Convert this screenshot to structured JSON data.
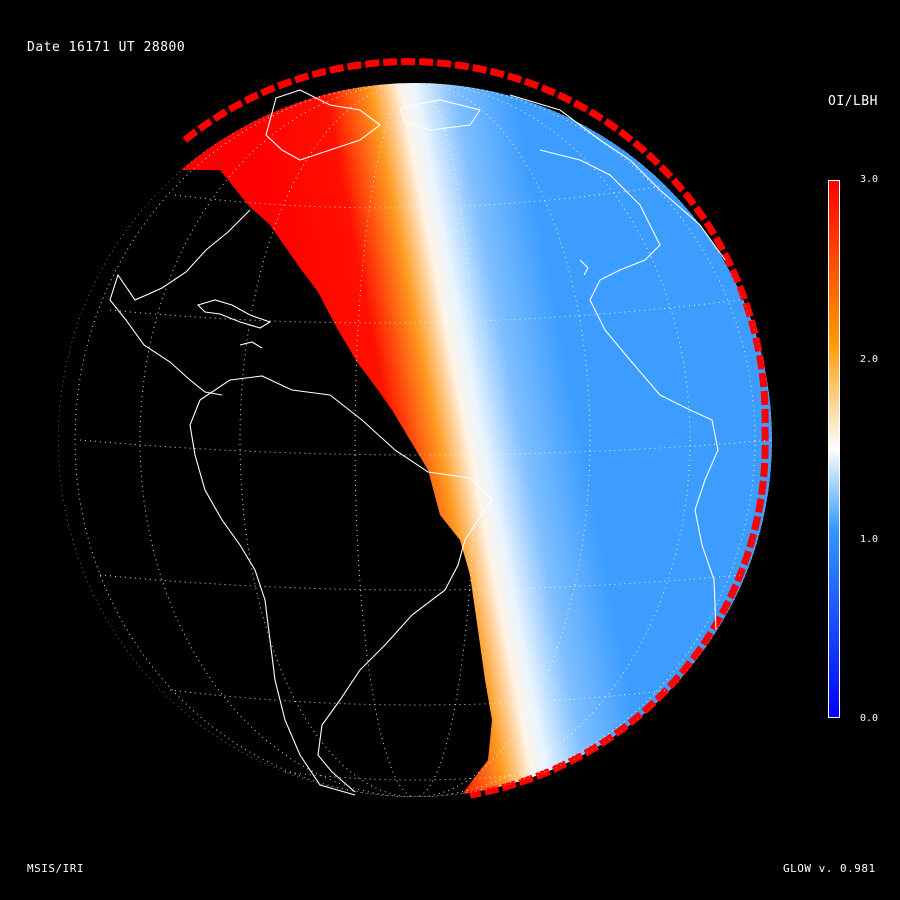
{
  "header": {
    "date_label": "Date 16171   UT 28800"
  },
  "colorbar": {
    "title": "OI/LBH",
    "min": 0.0,
    "max": 3.0,
    "ticks": [
      "3.0",
      "2.0",
      "1.0",
      "0.0"
    ],
    "colors": {
      "low": "#0000ff",
      "mid_low": "#3399ff",
      "mid": "#ffffff",
      "mid_high": "#ff9900",
      "high": "#ff0000"
    }
  },
  "footer": {
    "model_label": "MSIS/IRI",
    "version_label": "GLOW v. 0.981"
  },
  "map": {
    "projection": "orthographic",
    "night_color": "#000000",
    "coastline_color": "#ffffff",
    "grid": "dotted",
    "terminator_orientation": "north-west to south-east"
  }
}
